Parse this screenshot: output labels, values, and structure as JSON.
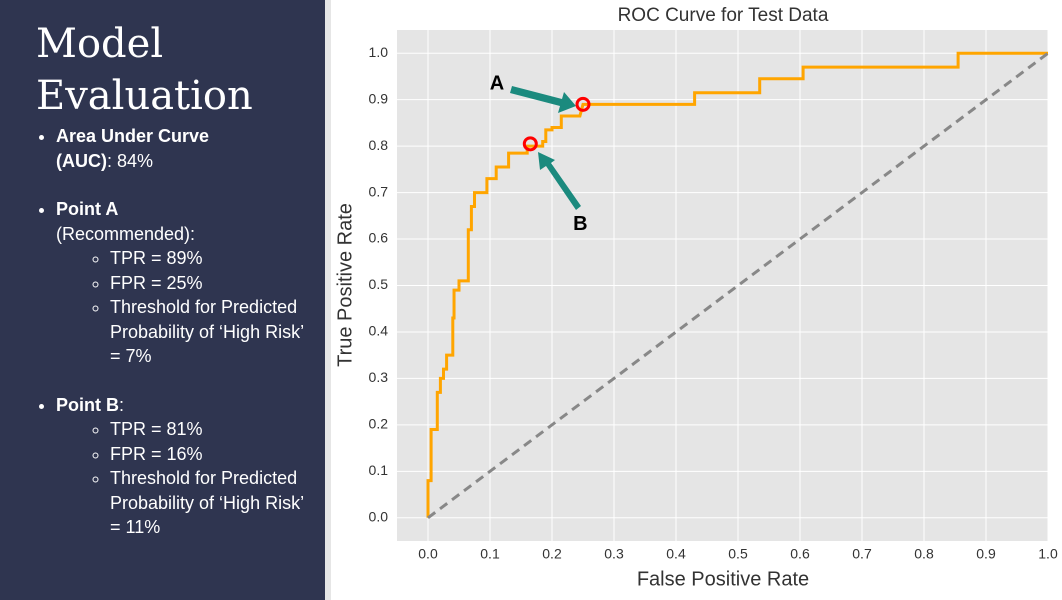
{
  "sidebar": {
    "title": "Model Evaluation",
    "items": [
      {
        "bold": "Area Under Curve (AUC)",
        "text": ": 84%",
        "subitems": []
      },
      {
        "bold": "Point A",
        "text": " (Recommended):",
        "subitems": [
          "TPR = 89%",
          "FPR = 25%",
          "Threshold for Predicted Probability of ‘High Risk’ = 7%"
        ]
      },
      {
        "bold": "Point B",
        "text": ":",
        "subitems": [
          "TPR = 81%",
          "FPR = 16%",
          "Threshold for Predicted Probability of ‘High Risk’ = 11%"
        ]
      }
    ]
  },
  "chart_data": {
    "type": "line",
    "title": "ROC Curve for Test Data",
    "x_label": "False Positive Rate",
    "y_label": "True Positive Rate",
    "xlim": [
      -0.05,
      1.0
    ],
    "ylim": [
      -0.05,
      1.05
    ],
    "xticks": [
      {
        "value": 0,
        "label": "0.0"
      },
      0.1,
      0.2,
      0.3,
      0.4,
      0.5,
      0.6,
      0.7,
      0.8,
      0.9,
      {
        "value": 1,
        "label": "1.0"
      }
    ],
    "yticks": [
      {
        "value": 0,
        "label": "0.0"
      },
      0.1,
      0.2,
      0.3,
      0.4,
      0.5,
      0.6,
      0.7,
      0.8,
      0.9,
      {
        "value": 1,
        "label": "1.0"
      }
    ],
    "grid": true,
    "series": [
      {
        "color": "#ffa500",
        "style": "solid",
        "x": [
          0,
          0,
          0.005,
          0.005,
          0.015,
          0.015,
          0.02,
          0.02,
          0.025,
          0.025,
          0.03,
          0.03,
          0.04,
          0.04,
          0.042,
          0.042,
          0.05,
          0.05,
          0.065,
          0.065,
          0.07,
          0.07,
          0.075,
          0.075,
          0.095,
          0.095,
          0.11,
          0.11,
          0.13,
          0.13,
          0.16,
          0.16,
          0.185,
          0.185,
          0.19,
          0.19,
          0.2,
          0.2,
          0.215,
          0.215,
          0.245,
          0.25,
          0.43,
          0.43,
          0.535,
          0.535,
          0.605,
          0.605,
          0.855,
          0.855,
          1.0
        ],
        "values": [
          0,
          0.08,
          0.08,
          0.19,
          0.19,
          0.27,
          0.27,
          0.3,
          0.3,
          0.32,
          0.32,
          0.35,
          0.35,
          0.43,
          0.43,
          0.49,
          0.49,
          0.51,
          0.51,
          0.62,
          0.62,
          0.67,
          0.67,
          0.7,
          0.7,
          0.73,
          0.73,
          0.755,
          0.755,
          0.785,
          0.785,
          0.8,
          0.8,
          0.81,
          0.81,
          0.835,
          0.835,
          0.84,
          0.84,
          0.865,
          0.865,
          0.89,
          0.89,
          0.915,
          0.915,
          0.945,
          0.945,
          0.97,
          0.97,
          1.0,
          1.0
        ]
      },
      {
        "color": "#888888",
        "style": "dashed",
        "x": [
          0,
          1
        ],
        "values": [
          0,
          1
        ]
      }
    ],
    "points": [
      {
        "label": "A",
        "x": 0.25,
        "y": 0.89
      },
      {
        "label": "B",
        "x": 0.165,
        "y": 0.805
      }
    ],
    "point_color": "#ff0000",
    "arrow_color": "#1b8a7e"
  }
}
